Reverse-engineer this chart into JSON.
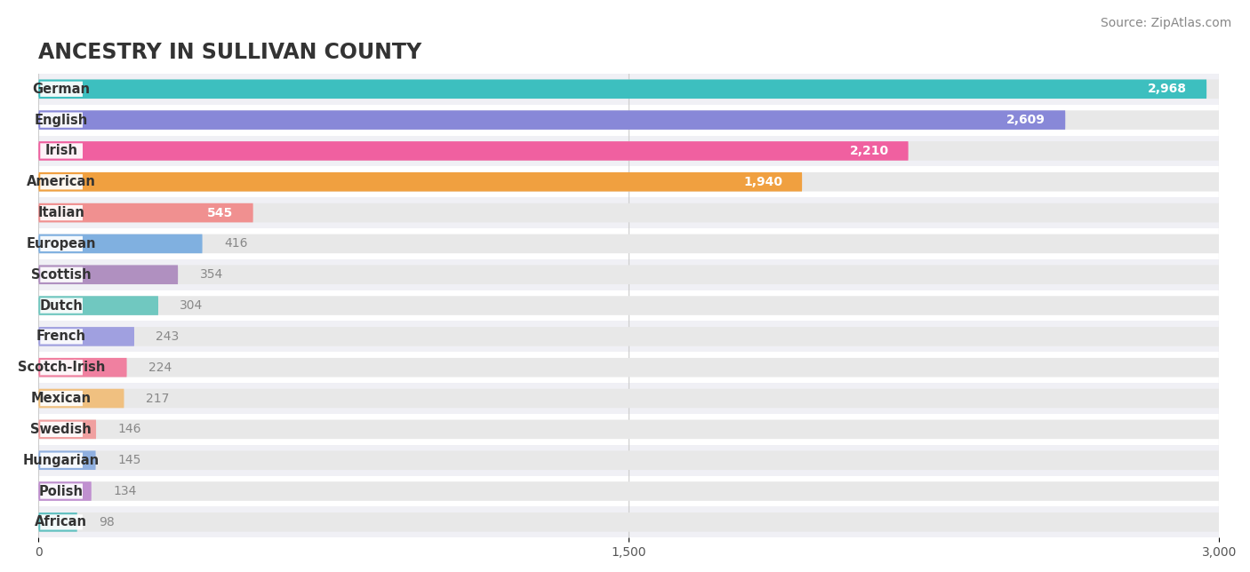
{
  "title": "ANCESTRY IN SULLIVAN COUNTY",
  "source": "Source: ZipAtlas.com",
  "categories": [
    "German",
    "English",
    "Irish",
    "American",
    "Italian",
    "European",
    "Scottish",
    "Dutch",
    "French",
    "Scotch-Irish",
    "Mexican",
    "Swedish",
    "Hungarian",
    "Polish",
    "African"
  ],
  "values": [
    2968,
    2609,
    2210,
    1940,
    545,
    416,
    354,
    304,
    243,
    224,
    217,
    146,
    145,
    134,
    98
  ],
  "bar_colors": [
    "#3dbfbf",
    "#8888d8",
    "#f060a0",
    "#f0a040",
    "#f09090",
    "#80b0e0",
    "#b090c0",
    "#70c8c0",
    "#a0a0e0",
    "#f080a0",
    "#f0c080",
    "#f0a0a0",
    "#90b0e0",
    "#c090d0",
    "#60c0c0"
  ],
  "bg_color": "#ffffff",
  "row_bg_colors": [
    "#f0f0f5",
    "#ffffff"
  ],
  "bar_bg_color": "#e8e8e8",
  "xlim": [
    0,
    3000
  ],
  "xticks": [
    0,
    1500,
    3000
  ],
  "xtick_labels": [
    "0",
    "1,500",
    "3,000"
  ],
  "title_fontsize": 17,
  "label_fontsize": 10.5,
  "value_fontsize": 10,
  "bar_height": 0.62,
  "title_color": "#333333",
  "label_color": "#333333",
  "value_color_inside": "#ffffff",
  "value_color_outside": "#888888",
  "source_color": "#888888",
  "source_fontsize": 10,
  "grid_color": "#cccccc",
  "value_threshold": 500
}
